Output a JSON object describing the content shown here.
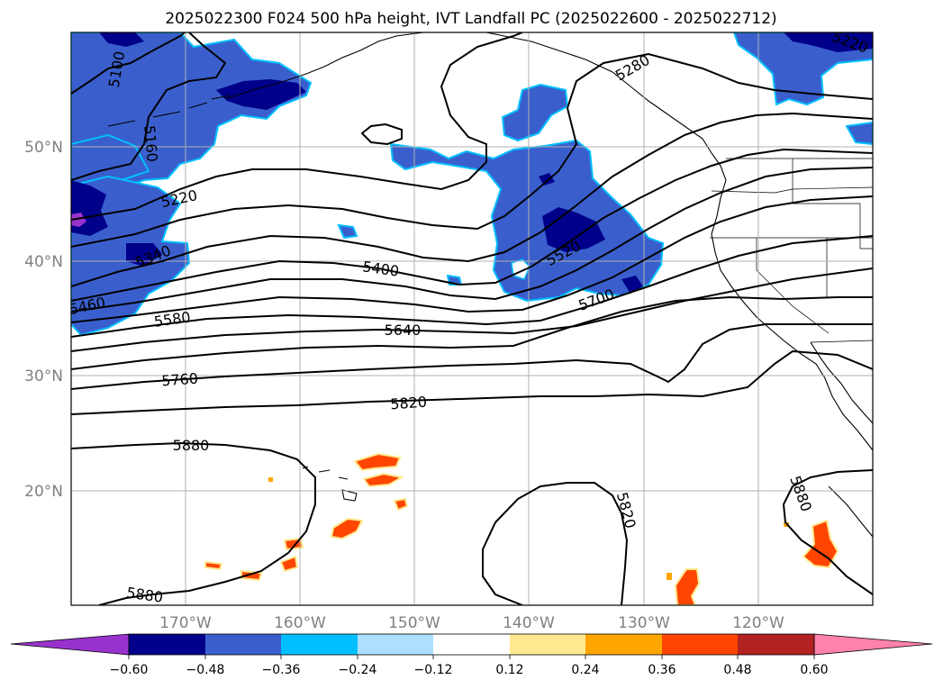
{
  "title": "2025022300 F024 500 hPa height, IVT Landfall PC (2025022600 - 2025022712)",
  "map": {
    "lat_labels": [
      "50°N",
      "40°N",
      "30°N",
      "20°N"
    ],
    "lon_labels": [
      "170°W",
      "160°W",
      "150°W",
      "140°W",
      "130°W",
      "120°W"
    ],
    "contour_labels": [
      "5100",
      "5160",
      "5220",
      "5280",
      "5340",
      "5400",
      "5460",
      "5520",
      "5580",
      "5640",
      "5700",
      "5760",
      "5820",
      "5880",
      "5220",
      "5820",
      "5880",
      "5880"
    ],
    "contour_color": "#000000",
    "grid_color": "#b0b0b0"
  },
  "colorbar": {
    "ticks": [
      "−0.60",
      "−0.48",
      "−0.36",
      "−0.24",
      "−0.12",
      "0.12",
      "0.24",
      "0.36",
      "0.48",
      "0.60"
    ],
    "colors": [
      "#9932CC",
      "#00008B",
      "#3A5FCD",
      "#00BFFF",
      "#ADDFFF",
      "#FFFFFF",
      "#FFE98F",
      "#FFA500",
      "#FF4500",
      "#B22222",
      "#FF82AB"
    ]
  }
}
